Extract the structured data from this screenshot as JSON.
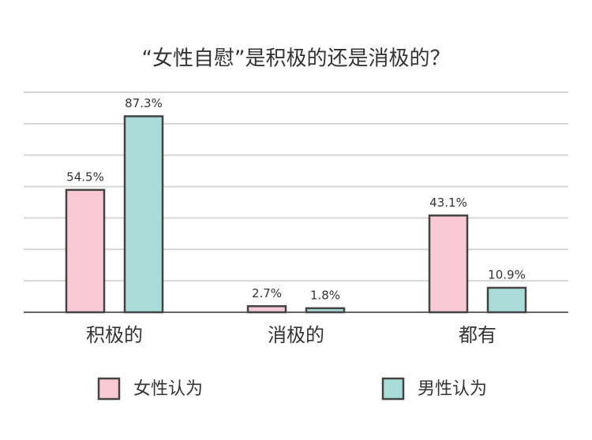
{
  "chart_data": {
    "type": "bar",
    "title": "“女性自慰”是积极的还是消极的？",
    "categories": [
      "积极的",
      "消极的",
      "都有"
    ],
    "series": [
      {
        "name": "女性认为",
        "color": "#f9c9d5",
        "values": [
          54.5,
          2.7,
          43.1
        ],
        "value_labels": [
          "54.5%",
          "2.7%",
          "43.1%"
        ]
      },
      {
        "name": "男性认为",
        "color": "#a9dcd9",
        "values": [
          87.3,
          1.8,
          10.9
        ],
        "value_labels": [
          "87.3%",
          "1.8%",
          "10.9%"
        ]
      }
    ],
    "ylim": [
      0,
      98
    ],
    "yticks": [
      0,
      14,
      28,
      42,
      56,
      70,
      84,
      98
    ],
    "grid": true,
    "legend": "bottom"
  }
}
